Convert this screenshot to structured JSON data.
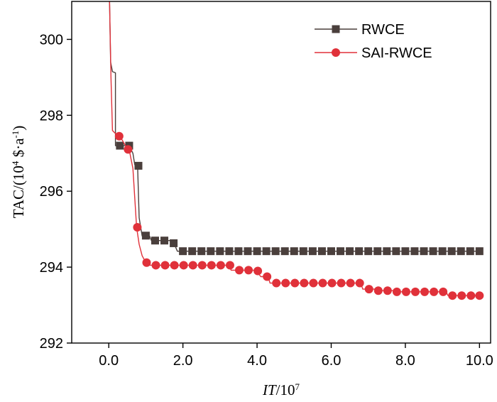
{
  "chart_data": {
    "type": "line",
    "xlabel_italic": "IT",
    "xlabel_rest": "/10",
    "xlabel_sup": "7",
    "ylabel_pre": "TAC/(10",
    "ylabel_sup1": "4",
    "ylabel_mid": " $·a",
    "ylabel_sup2": "-1",
    "ylabel_post": ")",
    "xlim": [
      -1.0,
      10.3
    ],
    "ylim": [
      292,
      301
    ],
    "xticks": [
      0,
      2,
      4,
      6,
      8,
      10
    ],
    "xtick_labels": [
      "0.0",
      "2.0",
      "4.0",
      "6.0",
      "8.0",
      "10.0"
    ],
    "yticks": [
      292,
      294,
      296,
      298,
      300
    ],
    "ytick_labels": [
      "292",
      "294",
      "296",
      "298",
      "300"
    ],
    "legend_position": "top-right",
    "grid": false,
    "series": [
      {
        "name": "RWCE",
        "color": "#4a3f3c",
        "marker": "square",
        "line": [
          [
            0.02,
            301.0
          ],
          [
            0.05,
            299.4
          ],
          [
            0.1,
            299.15
          ],
          [
            0.18,
            299.12
          ],
          [
            0.18,
            297.2
          ],
          [
            0.45,
            297.2
          ],
          [
            0.55,
            297.2
          ],
          [
            0.65,
            297.0
          ],
          [
            0.7,
            296.7
          ],
          [
            0.78,
            296.6
          ],
          [
            0.82,
            295.3
          ],
          [
            0.9,
            294.82
          ],
          [
            1.1,
            294.82
          ],
          [
            1.15,
            294.7
          ],
          [
            1.7,
            294.7
          ],
          [
            1.75,
            294.65
          ],
          [
            1.85,
            294.42
          ],
          [
            10.0,
            294.42
          ]
        ],
        "markers": [
          [
            0.3,
            297.2
          ],
          [
            0.55,
            297.2
          ],
          [
            0.8,
            296.67
          ],
          [
            1.0,
            294.83
          ],
          [
            1.25,
            294.7
          ],
          [
            1.5,
            294.7
          ],
          [
            1.75,
            294.63
          ],
          [
            2.0,
            294.42
          ],
          [
            2.25,
            294.42
          ],
          [
            2.5,
            294.42
          ],
          [
            2.75,
            294.42
          ],
          [
            3.0,
            294.42
          ],
          [
            3.25,
            294.42
          ],
          [
            3.5,
            294.42
          ],
          [
            3.75,
            294.42
          ],
          [
            4.0,
            294.42
          ],
          [
            4.25,
            294.42
          ],
          [
            4.5,
            294.42
          ],
          [
            4.75,
            294.42
          ],
          [
            5.0,
            294.42
          ],
          [
            5.25,
            294.42
          ],
          [
            5.5,
            294.42
          ],
          [
            5.75,
            294.42
          ],
          [
            6.0,
            294.42
          ],
          [
            6.25,
            294.42
          ],
          [
            6.5,
            294.42
          ],
          [
            6.75,
            294.42
          ],
          [
            7.0,
            294.42
          ],
          [
            7.25,
            294.42
          ],
          [
            7.5,
            294.42
          ],
          [
            7.75,
            294.42
          ],
          [
            8.0,
            294.42
          ],
          [
            8.25,
            294.42
          ],
          [
            8.5,
            294.42
          ],
          [
            8.75,
            294.42
          ],
          [
            9.0,
            294.42
          ],
          [
            9.25,
            294.42
          ],
          [
            9.5,
            294.42
          ],
          [
            9.75,
            294.42
          ],
          [
            10.0,
            294.42
          ]
        ]
      },
      {
        "name": "SAI-RWCE",
        "color": "#e0313a",
        "marker": "circle",
        "line": [
          [
            0.02,
            301.0
          ],
          [
            0.06,
            299.0
          ],
          [
            0.1,
            297.6
          ],
          [
            0.2,
            297.5
          ],
          [
            0.3,
            297.45
          ],
          [
            0.45,
            297.2
          ],
          [
            0.55,
            297.1
          ],
          [
            0.65,
            296.6
          ],
          [
            0.75,
            295.05
          ],
          [
            0.82,
            294.6
          ],
          [
            0.9,
            294.3
          ],
          [
            1.0,
            294.12
          ],
          [
            1.1,
            294.05
          ],
          [
            3.25,
            294.05
          ],
          [
            3.3,
            293.92
          ],
          [
            3.9,
            293.92
          ],
          [
            4.0,
            293.88
          ],
          [
            4.1,
            293.75
          ],
          [
            4.3,
            293.75
          ],
          [
            4.35,
            293.58
          ],
          [
            6.8,
            293.58
          ],
          [
            6.85,
            293.42
          ],
          [
            7.2,
            293.42
          ],
          [
            7.25,
            293.38
          ],
          [
            7.7,
            293.38
          ],
          [
            7.75,
            293.35
          ],
          [
            9.1,
            293.35
          ],
          [
            9.15,
            293.25
          ],
          [
            10.0,
            293.25
          ]
        ],
        "markers": [
          [
            0.28,
            297.45
          ],
          [
            0.52,
            297.1
          ],
          [
            0.77,
            295.05
          ],
          [
            1.02,
            294.12
          ],
          [
            1.27,
            294.05
          ],
          [
            1.52,
            294.05
          ],
          [
            1.77,
            294.05
          ],
          [
            2.02,
            294.05
          ],
          [
            2.27,
            294.05
          ],
          [
            2.52,
            294.05
          ],
          [
            2.77,
            294.05
          ],
          [
            3.02,
            294.05
          ],
          [
            3.27,
            294.05
          ],
          [
            3.52,
            293.92
          ],
          [
            3.77,
            293.92
          ],
          [
            4.02,
            293.9
          ],
          [
            4.27,
            293.75
          ],
          [
            4.52,
            293.58
          ],
          [
            4.77,
            293.58
          ],
          [
            5.02,
            293.58
          ],
          [
            5.27,
            293.58
          ],
          [
            5.52,
            293.58
          ],
          [
            5.77,
            293.58
          ],
          [
            6.02,
            293.58
          ],
          [
            6.27,
            293.58
          ],
          [
            6.52,
            293.58
          ],
          [
            6.77,
            293.58
          ],
          [
            7.02,
            293.42
          ],
          [
            7.27,
            293.38
          ],
          [
            7.52,
            293.38
          ],
          [
            7.77,
            293.35
          ],
          [
            8.02,
            293.35
          ],
          [
            8.27,
            293.35
          ],
          [
            8.52,
            293.35
          ],
          [
            8.77,
            293.35
          ],
          [
            9.02,
            293.35
          ],
          [
            9.27,
            293.25
          ],
          [
            9.52,
            293.25
          ],
          [
            9.77,
            293.25
          ],
          [
            10.0,
            293.25
          ]
        ]
      }
    ]
  }
}
